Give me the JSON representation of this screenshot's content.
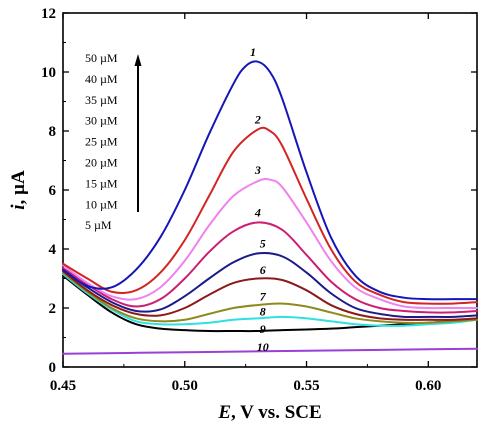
{
  "chart_data": {
    "type": "line",
    "xlabel_var": "E",
    "xlabel_rest": ", V vs. SCE",
    "ylabel_var": "i",
    "ylabel_rest": ", µA",
    "xlim": [
      0.45,
      0.62
    ],
    "ylim": [
      0,
      12
    ],
    "xticks": [
      "0.45",
      "0.50",
      "0.55",
      "0.60"
    ],
    "xtick_values": [
      0.45,
      0.5,
      0.55,
      0.6
    ],
    "yticks": [
      "0",
      "2",
      "4",
      "6",
      "8",
      "10",
      "12"
    ],
    "ytick_values": [
      0,
      2,
      4,
      6,
      8,
      10,
      12
    ],
    "legend_entries": [
      "50 µM",
      "40 µM",
      "35 µM",
      "30 µM",
      "25 µM",
      "20 µM",
      "15 µM",
      "10 µM",
      "5 µM"
    ],
    "series": [
      {
        "label": "1",
        "color": "#1515b8",
        "x": [
          0.45,
          0.46,
          0.47,
          0.48,
          0.49,
          0.5,
          0.51,
          0.52,
          0.525,
          0.53,
          0.535,
          0.54,
          0.55,
          0.56,
          0.57,
          0.58,
          0.59,
          0.6,
          0.61,
          0.62
        ],
        "y": [
          3.3,
          2.75,
          2.7,
          3.3,
          4.4,
          6.0,
          7.9,
          9.6,
          10.2,
          10.35,
          10.0,
          9.1,
          6.6,
          4.4,
          3.1,
          2.55,
          2.35,
          2.3,
          2.3,
          2.3
        ]
      },
      {
        "label": "2",
        "color": "#d42424",
        "x": [
          0.45,
          0.46,
          0.47,
          0.48,
          0.49,
          0.5,
          0.51,
          0.52,
          0.53,
          0.535,
          0.54,
          0.55,
          0.56,
          0.57,
          0.58,
          0.59,
          0.6,
          0.61,
          0.62
        ],
        "y": [
          3.5,
          3.0,
          2.55,
          2.6,
          3.2,
          4.3,
          5.8,
          7.3,
          8.05,
          8.0,
          7.5,
          5.7,
          4.0,
          2.9,
          2.45,
          2.2,
          2.15,
          2.15,
          2.2
        ]
      },
      {
        "label": "3",
        "color": "#ee82ee",
        "x": [
          0.45,
          0.46,
          0.47,
          0.48,
          0.49,
          0.5,
          0.51,
          0.52,
          0.53,
          0.535,
          0.54,
          0.55,
          0.56,
          0.57,
          0.58,
          0.59,
          0.6,
          0.61,
          0.62
        ],
        "y": [
          3.45,
          2.85,
          2.4,
          2.3,
          2.7,
          3.6,
          4.8,
          5.8,
          6.3,
          6.35,
          6.1,
          4.9,
          3.6,
          2.7,
          2.3,
          2.05,
          2.0,
          2.0,
          2.0
        ]
      },
      {
        "label": "4",
        "color": "#cc1f72",
        "x": [
          0.45,
          0.46,
          0.47,
          0.48,
          0.49,
          0.5,
          0.51,
          0.52,
          0.53,
          0.54,
          0.55,
          0.56,
          0.57,
          0.58,
          0.59,
          0.6,
          0.61,
          0.62
        ],
        "y": [
          3.35,
          2.8,
          2.3,
          2.05,
          2.3,
          3.0,
          3.9,
          4.6,
          4.9,
          4.65,
          3.8,
          2.9,
          2.3,
          2.0,
          1.9,
          1.85,
          1.85,
          1.9
        ]
      },
      {
        "label": "5",
        "color": "#1a1a8c",
        "x": [
          0.45,
          0.46,
          0.47,
          0.48,
          0.49,
          0.5,
          0.51,
          0.52,
          0.53,
          0.54,
          0.55,
          0.56,
          0.57,
          0.58,
          0.59,
          0.6,
          0.61,
          0.62
        ],
        "y": [
          3.3,
          2.7,
          2.2,
          1.9,
          1.95,
          2.4,
          3.0,
          3.55,
          3.85,
          3.75,
          3.2,
          2.5,
          2.0,
          1.8,
          1.7,
          1.7,
          1.7,
          1.75
        ]
      },
      {
        "label": "6",
        "color": "#8b1a1a",
        "x": [
          0.45,
          0.46,
          0.47,
          0.48,
          0.49,
          0.5,
          0.51,
          0.52,
          0.53,
          0.54,
          0.55,
          0.56,
          0.57,
          0.58,
          0.59,
          0.6,
          0.61,
          0.62
        ],
        "y": [
          3.25,
          2.6,
          2.1,
          1.8,
          1.75,
          2.0,
          2.45,
          2.85,
          3.0,
          2.95,
          2.6,
          2.1,
          1.8,
          1.65,
          1.6,
          1.6,
          1.6,
          1.65
        ]
      },
      {
        "label": "7",
        "color": "#8e8a1e",
        "x": [
          0.45,
          0.46,
          0.47,
          0.48,
          0.49,
          0.5,
          0.51,
          0.52,
          0.53,
          0.54,
          0.55,
          0.56,
          0.57,
          0.58,
          0.59,
          0.6,
          0.61,
          0.62
        ],
        "y": [
          3.2,
          2.55,
          2.0,
          1.65,
          1.55,
          1.6,
          1.8,
          2.0,
          2.1,
          2.15,
          2.05,
          1.85,
          1.65,
          1.55,
          1.5,
          1.5,
          1.55,
          1.6
        ]
      },
      {
        "label": "8",
        "color": "#2ee0e0",
        "x": [
          0.45,
          0.46,
          0.47,
          0.48,
          0.49,
          0.5,
          0.51,
          0.52,
          0.53,
          0.54,
          0.55,
          0.56,
          0.57,
          0.58,
          0.59,
          0.6,
          0.61,
          0.62
        ],
        "y": [
          3.15,
          2.5,
          1.95,
          1.55,
          1.45,
          1.45,
          1.5,
          1.6,
          1.65,
          1.7,
          1.65,
          1.55,
          1.45,
          1.4,
          1.4,
          1.45,
          1.5,
          1.6
        ]
      },
      {
        "label": "9",
        "color": "#000000",
        "x": [
          0.45,
          0.46,
          0.47,
          0.48,
          0.49,
          0.5,
          0.51,
          0.52,
          0.53,
          0.54,
          0.55,
          0.56,
          0.57,
          0.58,
          0.59,
          0.6,
          0.61,
          0.62
        ],
        "y": [
          3.1,
          2.45,
          1.85,
          1.45,
          1.3,
          1.25,
          1.22,
          1.22,
          1.22,
          1.25,
          1.27,
          1.3,
          1.35,
          1.4,
          1.45,
          1.5,
          1.55,
          1.6
        ]
      },
      {
        "label": "10",
        "color": "#9b3fd6",
        "x": [
          0.45,
          0.5,
          0.55,
          0.6,
          0.62
        ],
        "y": [
          0.45,
          0.5,
          0.55,
          0.6,
          0.62
        ]
      }
    ],
    "label_points": [
      {
        "label": "1",
        "x": 0.528,
        "y": 10.55
      },
      {
        "label": "2",
        "x": 0.53,
        "y": 8.25
      },
      {
        "label": "3",
        "x": 0.53,
        "y": 6.55
      },
      {
        "label": "4",
        "x": 0.53,
        "y": 5.1
      },
      {
        "label": "5",
        "x": 0.532,
        "y": 4.05
      },
      {
        "label": "6",
        "x": 0.532,
        "y": 3.15
      },
      {
        "label": "7",
        "x": 0.532,
        "y": 2.25
      },
      {
        "label": "8",
        "x": 0.532,
        "y": 1.75
      },
      {
        "label": "9",
        "x": 0.532,
        "y": 1.15
      },
      {
        "label": "10",
        "x": 0.532,
        "y": 0.55
      }
    ]
  }
}
